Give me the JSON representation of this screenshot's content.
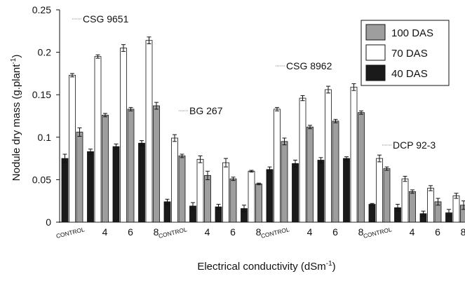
{
  "chart_data": {
    "type": "bar",
    "xlabel": "Electrical conductivity (dSm",
    "xlabel_sup": "-1",
    "xlabel_close": ")",
    "ylabel": "Nodule dry mass (g.plant",
    "ylabel_sup": "-1",
    "ylabel_close": ")",
    "ylim": [
      0,
      0.25
    ],
    "yticks": [
      "0",
      "0.05",
      "0.1",
      "0.15",
      "0.2",
      "0.25"
    ],
    "categories": [
      "CONTROL",
      "4",
      "6",
      "8",
      "CONTROL",
      "4",
      "6",
      "8",
      "CONTROL",
      "4",
      "6",
      "8",
      "CONTROL",
      "4",
      "6",
      "8"
    ],
    "groups": [
      "CSG 9651",
      "BG 267",
      "CSG 8962",
      "DCP 92-3"
    ],
    "legend_position": "top-right",
    "series": [
      {
        "name": "40 DAS",
        "color": "#1a1a1a",
        "values": [
          0.075,
          0.083,
          0.089,
          0.093,
          0.024,
          0.019,
          0.018,
          0.016,
          0.062,
          0.069,
          0.073,
          0.075,
          0.021,
          0.017,
          0.01,
          0.011
        ],
        "errors": [
          0.005,
          0.003,
          0.003,
          0.003,
          0.003,
          0.004,
          0.003,
          0.004,
          0.003,
          0.004,
          0.003,
          0.002,
          0.001,
          0.004,
          0.003,
          0.004
        ]
      },
      {
        "name": "70 DAS",
        "color": "#ffffff",
        "values": [
          0.173,
          0.195,
          0.205,
          0.214,
          0.099,
          0.074,
          0.07,
          0.06,
          0.133,
          0.146,
          0.156,
          0.159,
          0.075,
          0.051,
          0.04,
          0.031
        ],
        "errors": [
          0.002,
          0.002,
          0.004,
          0.004,
          0.004,
          0.004,
          0.005,
          0.001,
          0.002,
          0.003,
          0.004,
          0.004,
          0.004,
          0.003,
          0.003,
          0.003
        ]
      },
      {
        "name": "100 DAS",
        "color": "#9e9e9e",
        "values": [
          0.106,
          0.126,
          0.133,
          0.137,
          0.078,
          0.055,
          0.051,
          0.045,
          0.095,
          0.112,
          0.119,
          0.129,
          0.063,
          0.036,
          0.024,
          0.02
        ],
        "errors": [
          0.005,
          0.002,
          0.002,
          0.004,
          0.002,
          0.005,
          0.002,
          0.001,
          0.004,
          0.002,
          0.002,
          0.002,
          0.002,
          0.002,
          0.004,
          0.005
        ]
      }
    ],
    "legend_order": [
      "100 DAS",
      "70 DAS",
      "40 DAS"
    ]
  }
}
